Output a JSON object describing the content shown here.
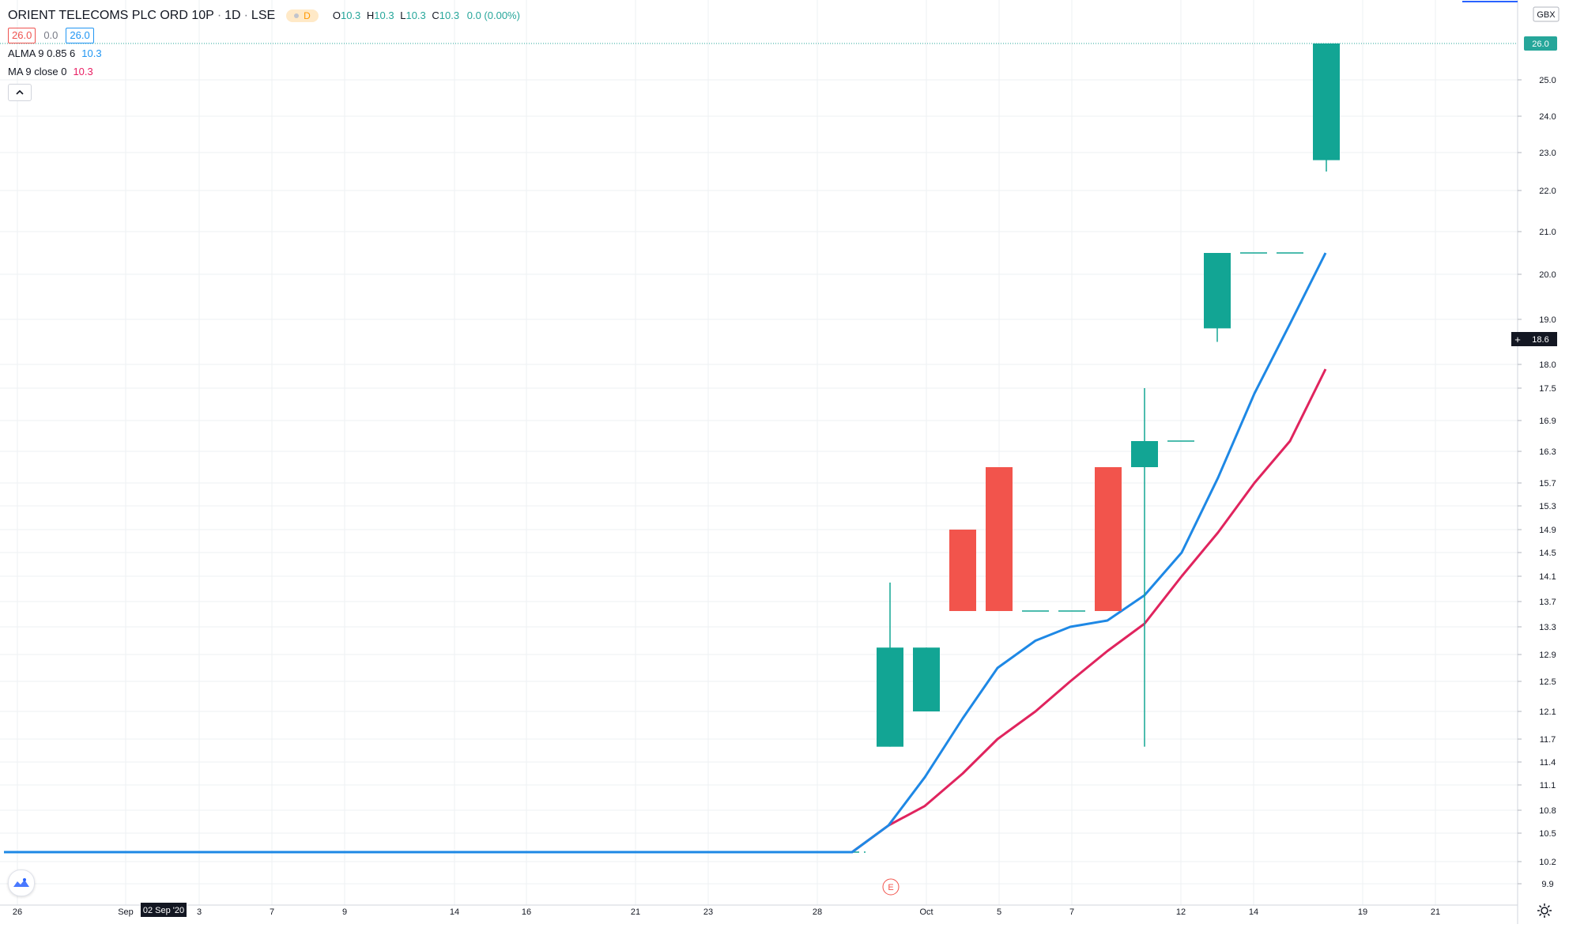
{
  "header": {
    "symbol": "ORIENT TELECOMS PLC ORD 10P",
    "interval": "1D",
    "exchange": "LSE",
    "session_badge": "D",
    "ohlc": {
      "o_label": "O",
      "o": "10.3",
      "h_label": "H",
      "h": "10.3",
      "l_label": "L",
      "l": "10.3",
      "c_label": "C",
      "c": "10.3",
      "change": "0.0 (0.00%)"
    }
  },
  "trade": {
    "sell": "26.0",
    "spread": "0.0",
    "buy": "26.0"
  },
  "indicators": [
    {
      "name": "ALMA 9 0.85 6",
      "value": "10.3",
      "color": "#2196f3"
    },
    {
      "name": "MA 9 close 0",
      "value": "10.3",
      "color": "#e91e63"
    }
  ],
  "collapse_icon": "chevron-up-icon",
  "currency": "GBX",
  "last_price_label": "26.0",
  "crosshair_price_label": "18.6",
  "crosshair_date_label": "02 Sep '20",
  "earnings_marker": "E",
  "colors": {
    "up": "#12a594",
    "down": "#f2544c",
    "alma": "#1e88e5",
    "ma": "#e0245e",
    "last_line": "#26a69a",
    "grid": "#edf0f3"
  },
  "chart_data": {
    "type": "candlestick",
    "currency": "GBX",
    "y_ticks": [
      "9.9",
      "10.2",
      "10.5",
      "10.8",
      "11.1",
      "11.4",
      "11.7",
      "12.1",
      "12.5",
      "12.9",
      "13.3",
      "13.7",
      "14.1",
      "14.5",
      "14.9",
      "15.3",
      "15.7",
      "16.3",
      "16.9",
      "17.5",
      "18.0",
      "19.0",
      "20.0",
      "21.0",
      "22.0",
      "23.0",
      "24.0",
      "25.0"
    ],
    "x_ticks": [
      "26",
      "Sep",
      "3",
      "7",
      "9",
      "14",
      "16",
      "21",
      "23",
      "28",
      "Oct",
      "5",
      "7",
      "12",
      "14",
      "19",
      "21"
    ],
    "candles": [
      {
        "o": 11.6,
        "h": 14.0,
        "l": 11.6,
        "c": 13.0
      },
      {
        "o": 12.1,
        "h": 13.0,
        "l": 12.1,
        "c": 13.0
      },
      {
        "o": 14.9,
        "h": 14.9,
        "l": 13.55,
        "c": 13.55
      },
      {
        "o": 16.0,
        "h": 16.0,
        "l": 13.55,
        "c": 13.55
      },
      {
        "o": 13.55,
        "h": 13.55,
        "l": 13.55,
        "c": 13.55
      },
      {
        "o": 13.55,
        "h": 13.55,
        "l": 13.55,
        "c": 13.55
      },
      {
        "o": 16.0,
        "h": 16.0,
        "l": 13.55,
        "c": 13.55
      },
      {
        "o": 16.0,
        "h": 17.5,
        "l": 11.6,
        "c": 16.5
      },
      {
        "o": 16.5,
        "h": 16.5,
        "l": 16.5,
        "c": 16.5
      },
      {
        "o": 18.8,
        "h": 20.5,
        "l": 18.5,
        "c": 20.5
      },
      {
        "o": 20.5,
        "h": 20.5,
        "l": 20.5,
        "c": 20.5
      },
      {
        "o": 20.5,
        "h": 20.5,
        "l": 20.5,
        "c": 20.5
      },
      {
        "o": 22.8,
        "h": 26.0,
        "l": 22.5,
        "c": 26.0
      }
    ],
    "flat_close": 10.3,
    "alma": [
      10.3,
      10.6,
      11.2,
      12.0,
      12.7,
      13.1,
      13.3,
      13.4,
      13.8,
      14.5,
      15.8,
      17.4,
      18.9,
      20.5
    ],
    "ma": [
      10.3,
      10.6,
      10.85,
      11.25,
      11.7,
      12.1,
      12.5,
      12.95,
      13.35,
      14.1,
      14.85,
      15.7,
      16.5,
      17.9
    ],
    "last_price": 26.0
  }
}
